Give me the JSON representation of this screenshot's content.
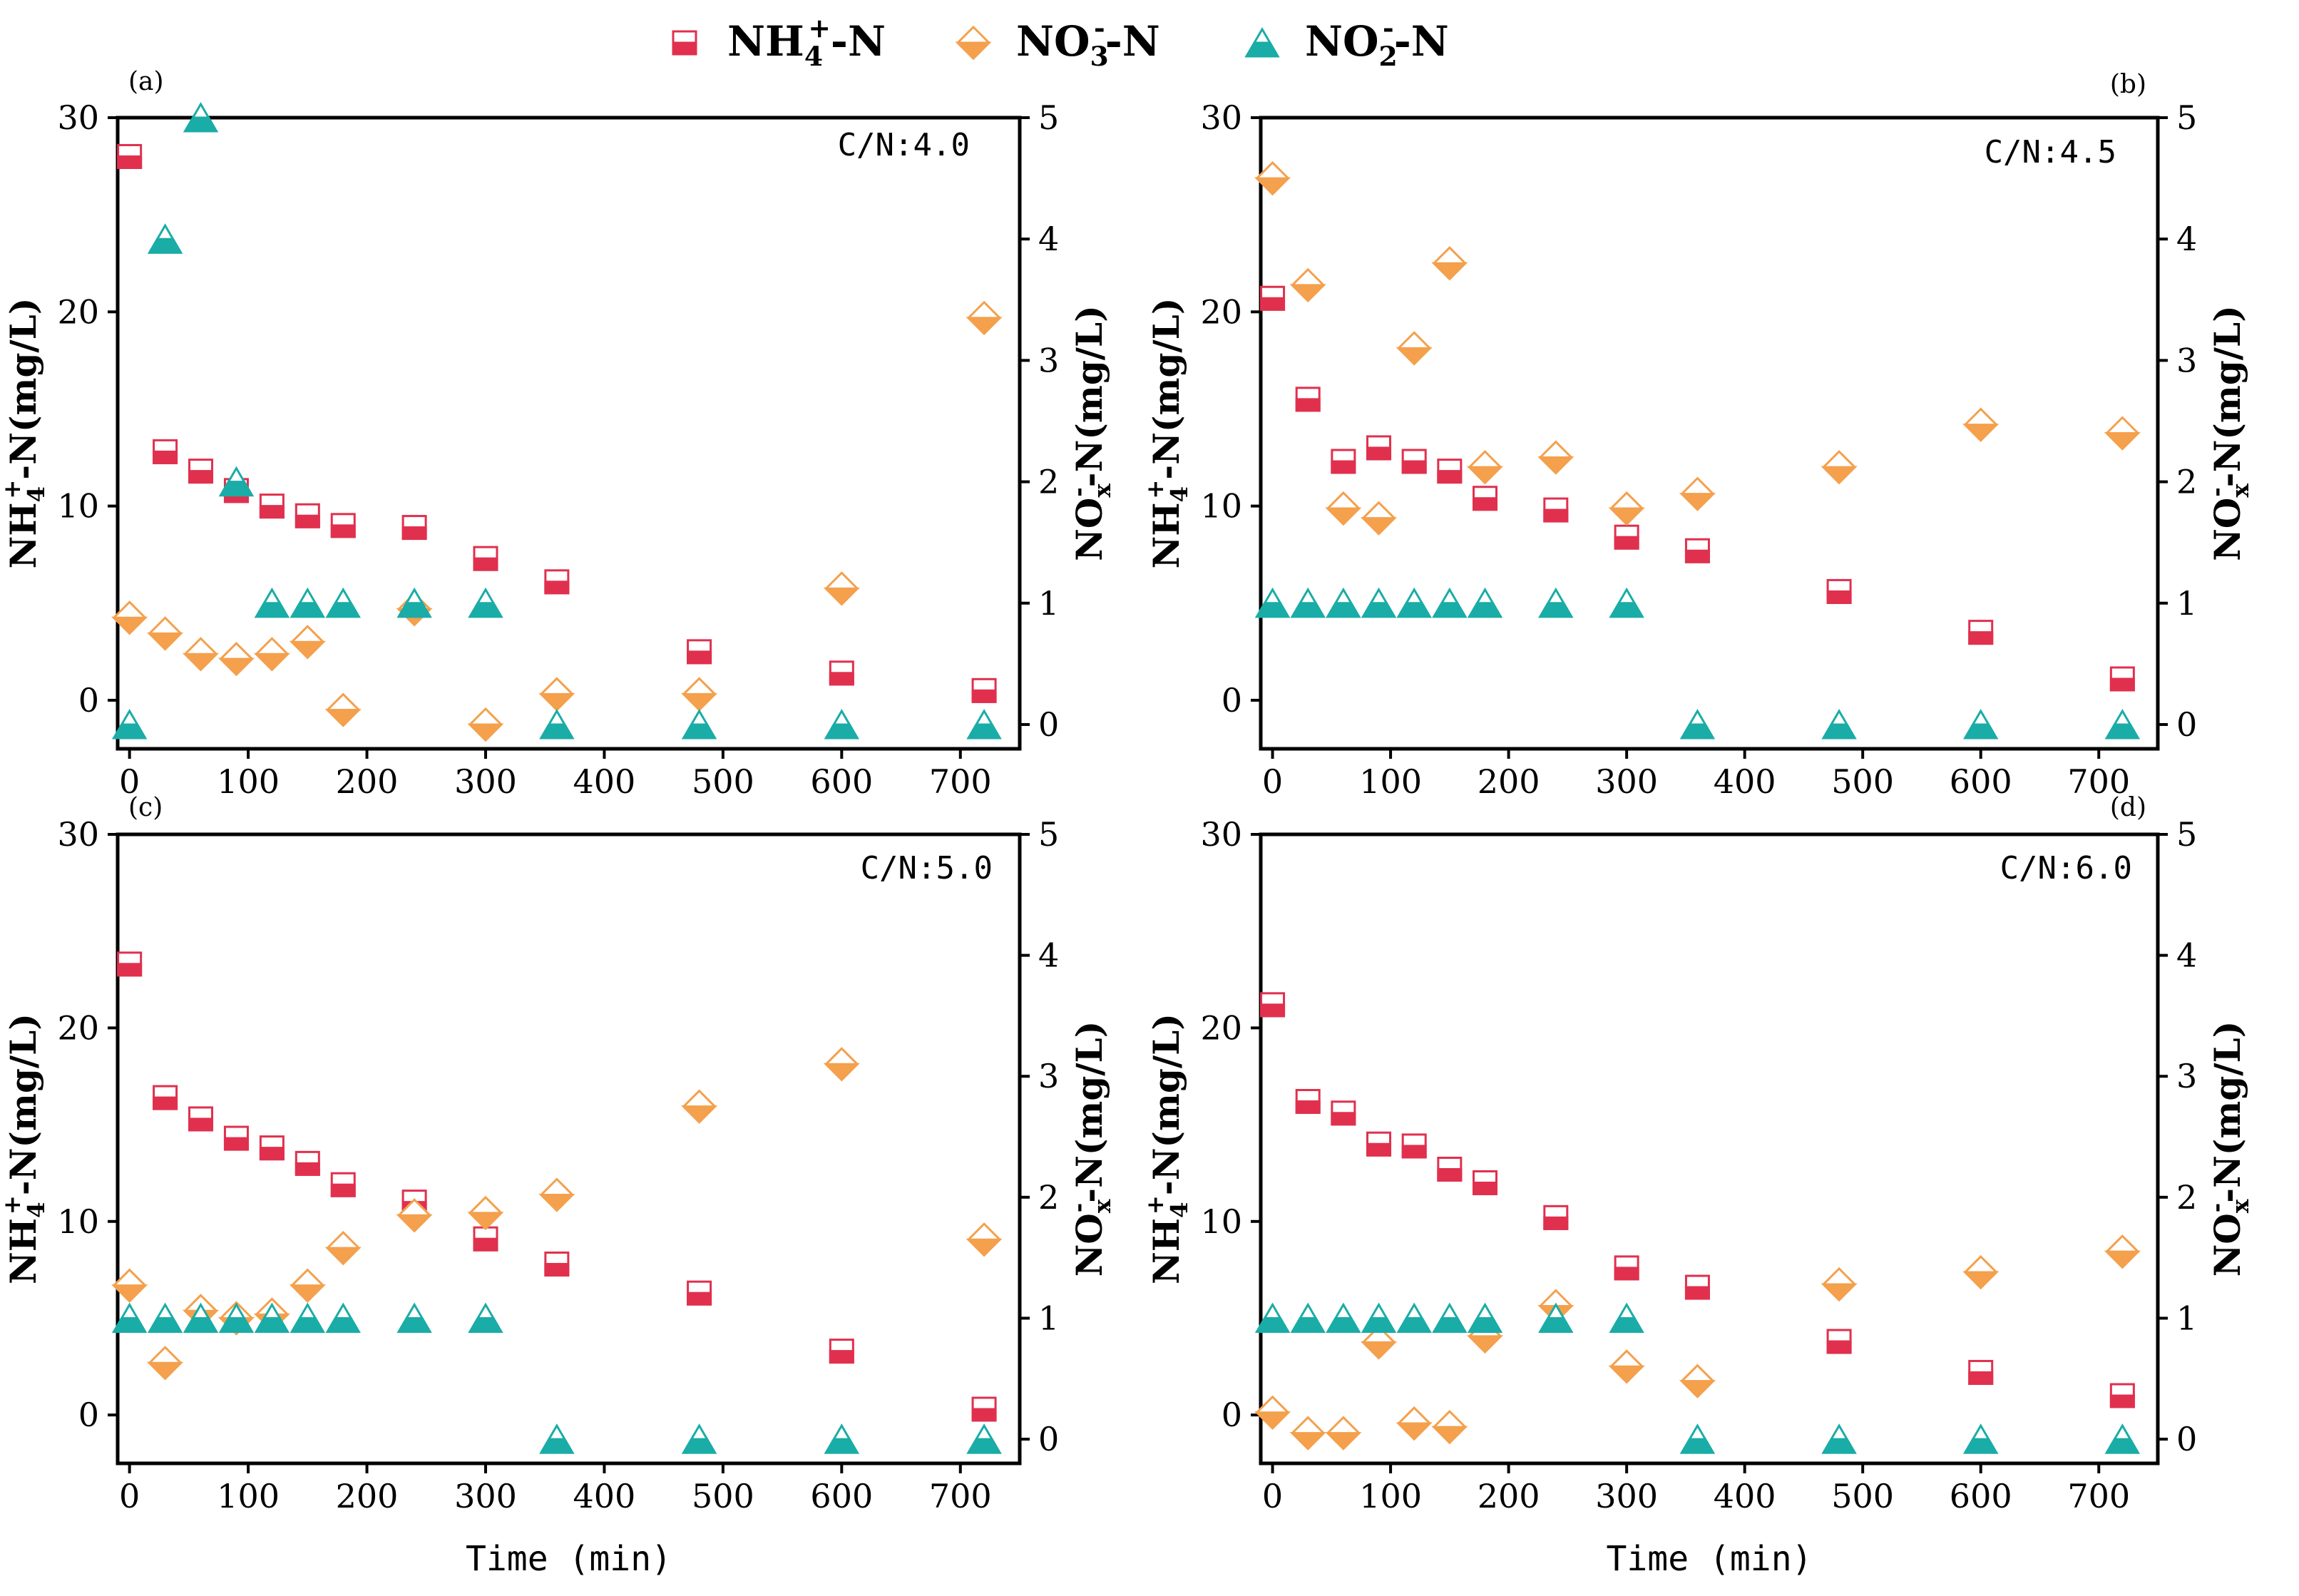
{
  "figure": {
    "legend": [
      {
        "key": "nh4",
        "base": "NH",
        "sub": "4",
        "sup": "+",
        "suffix": "-N",
        "color": "#e0304e",
        "fill_top": "#ffffff",
        "marker": "half-square"
      },
      {
        "key": "no3",
        "base": "NO",
        "sub": "3",
        "sup": "-",
        "suffix": "-N",
        "color": "#f4a04c",
        "fill_top": "#ffffff",
        "marker": "half-diamond"
      },
      {
        "key": "no2",
        "base": "NO",
        "sub": "2",
        "sup": "-",
        "suffix": "-N",
        "color": "#1aaca7",
        "fill_top": "#ffffff",
        "marker": "half-triangle"
      }
    ],
    "left_axis_label": {
      "base": "NH",
      "sub": "4",
      "sup": "+",
      "suffix": "-N(mg/L)"
    },
    "right_axis_label": {
      "base": "NO",
      "sub": "x",
      "sup": "-",
      "suffix": "-N(mg/L)"
    },
    "x_axis_title": "Time (min)"
  },
  "chart_data": [
    {
      "type": "scatter",
      "panel": "(a)",
      "annotation": "C/N:4.0",
      "xlabel": "Time (min)",
      "x": [
        0,
        30,
        60,
        90,
        120,
        150,
        180,
        240,
        300,
        360,
        480,
        600,
        720
      ],
      "xlim": [
        -10,
        750
      ],
      "xticks": [
        0,
        100,
        200,
        300,
        400,
        500,
        600,
        700
      ],
      "ylim_left": [
        -2.5,
        30
      ],
      "yticks_left": [
        0,
        10,
        20,
        30
      ],
      "ylim_right": [
        -0.2,
        5
      ],
      "yticks_right": [
        0,
        1,
        2,
        3,
        4,
        5
      ],
      "series": [
        {
          "name": "NH4+-N",
          "axis": "left",
          "values": [
            28,
            12.8,
            11.8,
            10.8,
            10,
            9.5,
            9,
            8.9,
            7.3,
            6.1,
            2.5,
            1.4,
            0.5
          ]
        },
        {
          "name": "NO3--N",
          "axis": "right",
          "values": [
            0.88,
            0.75,
            0.58,
            0.54,
            0.58,
            0.68,
            0.12,
            0.95,
            0,
            0.25,
            0.25,
            1.12,
            3.35
          ]
        },
        {
          "name": "NO2--N",
          "axis": "right",
          "values": [
            0,
            4,
            5,
            2,
            1,
            1,
            1,
            1,
            1,
            0,
            0,
            0,
            0
          ]
        }
      ]
    },
    {
      "type": "scatter",
      "panel": "(b)",
      "annotation": "C/N:4.5",
      "xlabel": "Time (min)",
      "x": [
        0,
        30,
        60,
        90,
        120,
        150,
        180,
        240,
        300,
        360,
        480,
        600,
        720
      ],
      "xlim": [
        -10,
        750
      ],
      "xticks": [
        0,
        100,
        200,
        300,
        400,
        500,
        600,
        700
      ],
      "ylim_left": [
        -2.5,
        30
      ],
      "yticks_left": [
        0,
        10,
        20,
        30
      ],
      "ylim_right": [
        -0.2,
        5
      ],
      "yticks_right": [
        0,
        1,
        2,
        3,
        4,
        5
      ],
      "series": [
        {
          "name": "NH4+-N",
          "axis": "left",
          "values": [
            20.7,
            15.5,
            12.3,
            13,
            12.3,
            11.8,
            10.4,
            9.8,
            8.4,
            7.7,
            5.6,
            3.5,
            1.1
          ]
        },
        {
          "name": "NO3--N",
          "axis": "right",
          "values": [
            4.5,
            3.62,
            1.78,
            1.7,
            3.1,
            3.8,
            2.12,
            2.2,
            1.78,
            1.9,
            2.12,
            2.47,
            2.4
          ]
        },
        {
          "name": "NO2--N",
          "axis": "right",
          "values": [
            1,
            1,
            1,
            1,
            1,
            1,
            1,
            1,
            1,
            0,
            0,
            0,
            0
          ]
        }
      ]
    },
    {
      "type": "scatter",
      "panel": "(c)",
      "annotation": "C/N:5.0",
      "xlabel": "Time (min)",
      "x": [
        0,
        30,
        60,
        90,
        120,
        150,
        180,
        240,
        300,
        360,
        480,
        600,
        720
      ],
      "xlim": [
        -10,
        750
      ],
      "xticks": [
        0,
        100,
        200,
        300,
        400,
        500,
        600,
        700
      ],
      "ylim_left": [
        -2.5,
        30
      ],
      "yticks_left": [
        0,
        10,
        20,
        30
      ],
      "ylim_right": [
        -0.2,
        5
      ],
      "yticks_right": [
        0,
        1,
        2,
        3,
        4,
        5
      ],
      "series": [
        {
          "name": "NH4+-N",
          "axis": "left",
          "values": [
            23.3,
            16.4,
            15.3,
            14.3,
            13.8,
            13,
            11.9,
            11,
            9.1,
            7.8,
            6.3,
            3.3,
            0.3
          ]
        },
        {
          "name": "NO3--N",
          "axis": "right",
          "values": [
            1.27,
            0.63,
            1.06,
            1.0,
            1.03,
            1.27,
            1.58,
            1.85,
            1.87,
            2.02,
            2.75,
            3.1,
            1.65
          ]
        },
        {
          "name": "NO2--N",
          "axis": "right",
          "values": [
            1,
            1,
            1,
            1,
            1,
            1,
            1,
            1,
            1,
            0,
            0,
            0,
            0
          ]
        }
      ]
    },
    {
      "type": "scatter",
      "panel": "(d)",
      "annotation": "C/N:6.0",
      "xlabel": "Time (min)",
      "x": [
        0,
        30,
        60,
        90,
        120,
        150,
        180,
        240,
        300,
        360,
        480,
        600,
        720
      ],
      "xlim": [
        -10,
        750
      ],
      "xticks": [
        0,
        100,
        200,
        300,
        400,
        500,
        600,
        700
      ],
      "ylim_left": [
        -2.5,
        30
      ],
      "yticks_left": [
        0,
        10,
        20,
        30
      ],
      "ylim_right": [
        -0.2,
        5
      ],
      "yticks_right": [
        0,
        1,
        2,
        3,
        4,
        5
      ],
      "series": [
        {
          "name": "NH4+-N",
          "axis": "left",
          "values": [
            21.2,
            16.2,
            15.6,
            14,
            13.9,
            12.7,
            12,
            10.2,
            7.6,
            6.6,
            3.8,
            2.2,
            1.0
          ]
        },
        {
          "name": "NO3--N",
          "axis": "right",
          "values": [
            0.22,
            0.05,
            0.05,
            0.8,
            0.13,
            0.1,
            0.85,
            1.1,
            0.6,
            0.48,
            1.28,
            1.38,
            1.55
          ]
        },
        {
          "name": "NO2--N",
          "axis": "right",
          "values": [
            1,
            1,
            1,
            1,
            1,
            1,
            1,
            1,
            1,
            0,
            0,
            0,
            0
          ]
        }
      ]
    }
  ]
}
